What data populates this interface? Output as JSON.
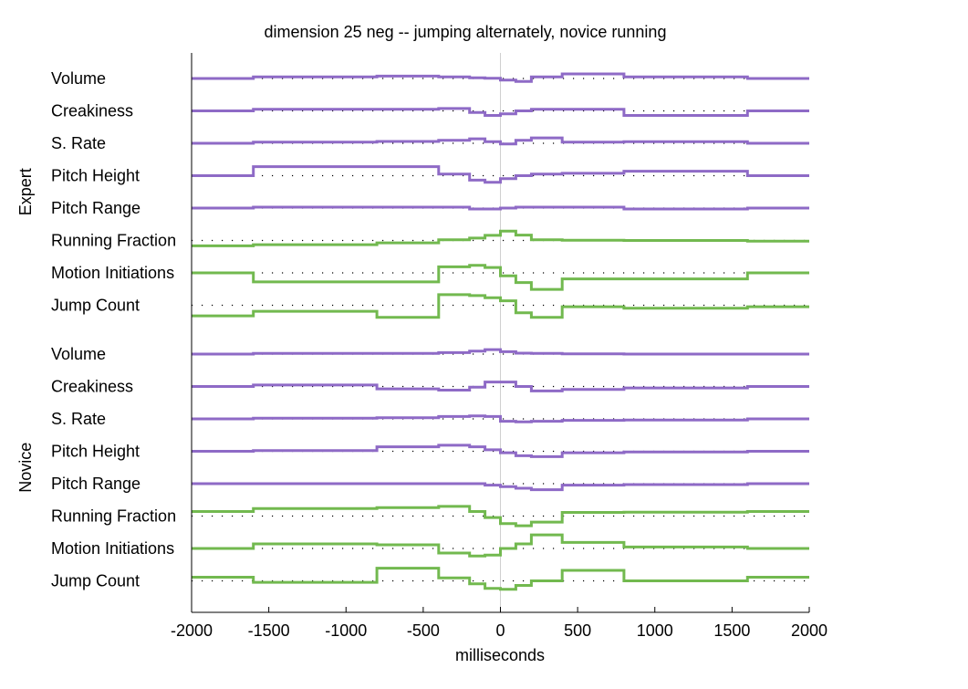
{
  "chart_data": {
    "type": "line",
    "title": "dimension 25 neg --  jumping alternately, novice running",
    "xlabel": "milliseconds",
    "xlim": [
      -2000,
      2000
    ],
    "xticks": [
      -2000,
      -1500,
      -1000,
      -500,
      0,
      500,
      1000,
      1500,
      2000
    ],
    "x_breakpoints": [
      -2000,
      -1600,
      -800,
      -400,
      -200,
      -100,
      0,
      100,
      200,
      400,
      800,
      1600,
      2000
    ],
    "grid": false,
    "zero_line": true,
    "colors": {
      "prosody": "#8e6ac6",
      "motion": "#72b94f"
    },
    "groups": [
      {
        "name": "Expert",
        "tracks": [
          {
            "label": "Volume",
            "color": "prosody",
            "values": [
              0,
              0.5,
              0.8,
              0.5,
              0.2,
              0.1,
              -0.5,
              -1.0,
              0.5,
              1.5,
              0.5,
              0
            ]
          },
          {
            "label": "Creakiness",
            "color": "prosody",
            "values": [
              0,
              0.5,
              0.5,
              0.8,
              -0.5,
              -1.5,
              -1.0,
              0,
              0.5,
              0.5,
              -1.5,
              0
            ]
          },
          {
            "label": "S. Rate",
            "color": "prosody",
            "values": [
              0,
              0.4,
              0.6,
              1.0,
              1.5,
              0.5,
              -0.2,
              1.0,
              1.8,
              0.4,
              0.5,
              0
            ]
          },
          {
            "label": "Pitch Height",
            "color": "prosody",
            "values": [
              0,
              3.0,
              3.0,
              0.5,
              -1.5,
              -2.2,
              -1.0,
              0,
              0.5,
              0.8,
              1.5,
              0
            ]
          },
          {
            "label": "Pitch Range",
            "color": "prosody",
            "values": [
              0,
              0.3,
              0.3,
              0.3,
              -0.3,
              -0.3,
              0,
              0.3,
              0.3,
              0.3,
              -0.3,
              0
            ]
          },
          {
            "label": "Running Fraction",
            "color": "motion",
            "values": [
              -1.8,
              -1.4,
              -0.8,
              0.2,
              0.8,
              1.7,
              3.1,
              1.8,
              0.2,
              0.1,
              0,
              -0.2
            ]
          },
          {
            "label": "Motion Initiations",
            "color": "motion",
            "values": [
              0,
              -3.0,
              -3.0,
              2.0,
              2.5,
              1.8,
              -1.0,
              -3.2,
              -5.5,
              -2.0,
              -2.0,
              0
            ]
          },
          {
            "label": "Jump Count",
            "color": "motion",
            "values": [
              -3.5,
              -2.0,
              -4.0,
              3.5,
              3.2,
              2.5,
              1.5,
              -2.5,
              -4.0,
              -0.5,
              -1.0,
              -0.5
            ]
          }
        ]
      },
      {
        "name": "Novice",
        "tracks": [
          {
            "label": "Volume",
            "color": "prosody",
            "values": [
              0,
              0.2,
              0.2,
              0.5,
              1.0,
              1.5,
              0.8,
              0.3,
              0.2,
              0.1,
              0,
              0
            ]
          },
          {
            "label": "Creakiness",
            "color": "prosody",
            "values": [
              0,
              0.5,
              -0.8,
              -1.2,
              -0.2,
              1.5,
              1.5,
              0,
              -1.5,
              -1.0,
              -0.5,
              0
            ]
          },
          {
            "label": "S. Rate",
            "color": "prosody",
            "values": [
              0,
              0.2,
              0.4,
              0.8,
              1.0,
              0.8,
              -0.8,
              -1.0,
              -0.8,
              -0.5,
              -0.4,
              0
            ]
          },
          {
            "label": "Pitch Height",
            "color": "prosody",
            "values": [
              0,
              0.2,
              1.5,
              2.0,
              1.5,
              0.5,
              -0.5,
              -1.5,
              -1.8,
              -0.5,
              -0.2,
              0
            ]
          },
          {
            "label": "Pitch Range",
            "color": "prosody",
            "values": [
              0,
              0,
              0,
              0,
              0,
              -0.5,
              -1.0,
              -1.5,
              -2.0,
              -0.5,
              -0.3,
              0
            ]
          },
          {
            "label": "Running Fraction",
            "color": "motion",
            "values": [
              1.5,
              2.5,
              2.8,
              3.2,
              1.5,
              -0.5,
              -2.5,
              -3.2,
              -2.0,
              1.2,
              1.3,
              1.5
            ]
          },
          {
            "label": "Motion Initiations",
            "color": "motion",
            "values": [
              0,
              1.5,
              1.2,
              -1.5,
              -2.5,
              -2.2,
              0,
              1.5,
              4.5,
              2.0,
              0.5,
              0
            ]
          },
          {
            "label": "Jump Count",
            "color": "motion",
            "values": [
              1.2,
              -0.5,
              4.2,
              1.0,
              -1.0,
              -2.5,
              -2.8,
              -1.5,
              0,
              3.5,
              0,
              1.2
            ]
          }
        ]
      }
    ]
  }
}
